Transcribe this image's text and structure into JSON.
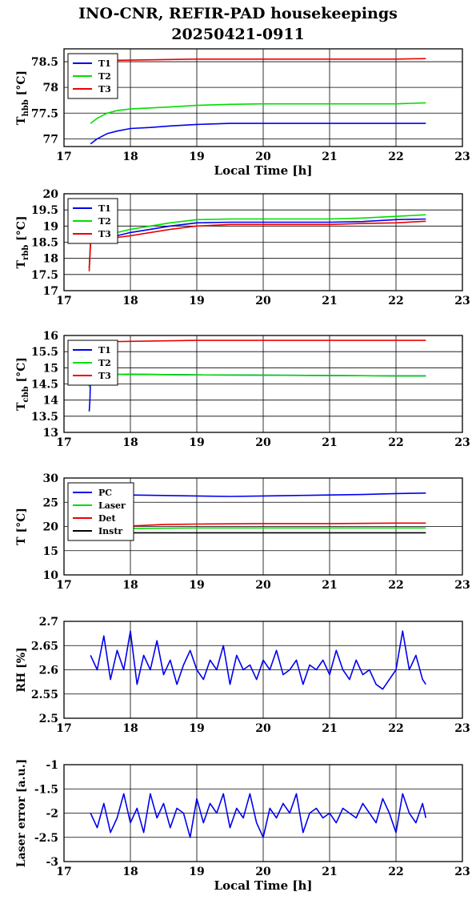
{
  "title_line1": "INO-CNR, REFIR-PAD housekeepings",
  "title_line2": "20250421-0911",
  "colors": {
    "blue": "#0000ee",
    "green": "#00dd00",
    "red": "#ee0000",
    "black": "#000000"
  },
  "chart_data": [
    {
      "type": "line",
      "ylabel_main": "T",
      "ylabel_sub": "hbb",
      "ylabel_unit": "[°C]",
      "xlabel": "Local Time [h]",
      "xlim": [
        17,
        23
      ],
      "ylim": [
        76.85,
        78.75
      ],
      "xticks": [
        17,
        18,
        19,
        20,
        21,
        22,
        23
      ],
      "yticks": [
        77,
        77.5,
        78,
        78.5
      ],
      "ytick_labels": [
        "77",
        "77.5",
        "78",
        "78.5"
      ],
      "grid": true,
      "legend": "top-left",
      "series": [
        {
          "name": "T1",
          "color": "#0000ee",
          "x": [
            17.4,
            17.5,
            17.65,
            17.8,
            18.0,
            18.3,
            18.6,
            19.0,
            19.5,
            20.0,
            20.5,
            21.0,
            21.5,
            22.0,
            22.45
          ],
          "y": [
            76.9,
            77.0,
            77.1,
            77.15,
            77.2,
            77.22,
            77.25,
            77.28,
            77.3,
            77.3,
            77.3,
            77.3,
            77.3,
            77.3,
            77.3
          ]
        },
        {
          "name": "T2",
          "color": "#00dd00",
          "x": [
            17.4,
            17.5,
            17.65,
            17.8,
            18.0,
            18.3,
            18.6,
            19.0,
            19.5,
            20.0,
            20.5,
            21.0,
            21.5,
            22.0,
            22.45
          ],
          "y": [
            77.3,
            77.4,
            77.5,
            77.55,
            77.58,
            77.6,
            77.62,
            77.65,
            77.67,
            77.68,
            77.68,
            77.68,
            77.68,
            77.68,
            77.7
          ]
        },
        {
          "name": "T3",
          "color": "#ee0000",
          "x": [
            17.4,
            18.0,
            19.0,
            20.0,
            21.0,
            22.0,
            22.45
          ],
          "y": [
            78.52,
            78.53,
            78.55,
            78.55,
            78.55,
            78.55,
            78.56
          ]
        }
      ]
    },
    {
      "type": "line",
      "ylabel_main": "T",
      "ylabel_sub": "rbb",
      "ylabel_unit": "[°C]",
      "xlabel": "",
      "xlim": [
        17,
        23
      ],
      "ylim": [
        17,
        20
      ],
      "xticks": [
        17,
        18,
        19,
        20,
        21,
        22,
        23
      ],
      "yticks": [
        17,
        17.5,
        18,
        18.5,
        19,
        19.5,
        20
      ],
      "ytick_labels": [
        "17",
        "17.5",
        "18",
        "18.5",
        "19",
        "19.5",
        "20"
      ],
      "grid": true,
      "legend": "top-left",
      "series": [
        {
          "name": "T1",
          "color": "#0000ee",
          "x": [
            17.38,
            17.4,
            17.45,
            17.6,
            17.8,
            18.0,
            18.3,
            18.6,
            19.0,
            19.5,
            20.0,
            20.5,
            21.0,
            21.5,
            22.0,
            22.45
          ],
          "y": [
            17.7,
            18.5,
            18.62,
            18.65,
            18.7,
            18.8,
            18.9,
            19.0,
            19.1,
            19.12,
            19.12,
            19.12,
            19.12,
            19.14,
            19.2,
            19.22
          ]
        },
        {
          "name": "T2",
          "color": "#00dd00",
          "x": [
            17.38,
            17.4,
            17.45,
            17.6,
            17.8,
            18.0,
            18.3,
            18.6,
            19.0,
            19.5,
            20.0,
            20.5,
            21.0,
            21.5,
            22.0,
            22.45
          ],
          "y": [
            17.7,
            18.55,
            18.7,
            18.75,
            18.8,
            18.9,
            19.0,
            19.1,
            19.2,
            19.22,
            19.22,
            19.22,
            19.22,
            19.25,
            19.3,
            19.35
          ]
        },
        {
          "name": "T3",
          "color": "#ee0000",
          "x": [
            17.38,
            17.4,
            17.45,
            17.6,
            17.8,
            18.0,
            18.3,
            18.6,
            19.0,
            19.5,
            20.0,
            20.5,
            21.0,
            21.5,
            22.0,
            22.45
          ],
          "y": [
            17.6,
            18.45,
            18.55,
            18.6,
            18.65,
            18.7,
            18.8,
            18.9,
            19.0,
            19.05,
            19.05,
            19.05,
            19.05,
            19.08,
            19.1,
            19.15
          ]
        }
      ]
    },
    {
      "type": "line",
      "ylabel_main": "T",
      "ylabel_sub": "cbb",
      "ylabel_unit": "[°C]",
      "xlabel": "",
      "xlim": [
        17,
        23
      ],
      "ylim": [
        13,
        16
      ],
      "xticks": [
        17,
        18,
        19,
        20,
        21,
        22,
        23
      ],
      "yticks": [
        13,
        13.5,
        14,
        14.5,
        15,
        15.5,
        16
      ],
      "ytick_labels": [
        "13",
        "13.5",
        "14",
        "14.5",
        "15",
        "15.5",
        "16"
      ],
      "grid": true,
      "legend": "top-left",
      "series": [
        {
          "name": "T1",
          "color": "#0000ee",
          "x": [
            17.38,
            17.39,
            17.4,
            17.45,
            18.0,
            19.0,
            20.0,
            21.0,
            22.0,
            22.45
          ],
          "y": [
            13.65,
            14.0,
            14.7,
            14.78,
            14.8,
            14.78,
            14.77,
            14.76,
            14.75,
            14.75
          ]
        },
        {
          "name": "T2",
          "color": "#00dd00",
          "x": [
            17.38,
            17.39,
            17.4,
            17.45,
            18.0,
            19.0,
            20.0,
            21.0,
            22.0,
            22.45
          ],
          "y": [
            14.4,
            14.6,
            14.75,
            14.78,
            14.8,
            14.78,
            14.77,
            14.76,
            14.75,
            14.75
          ]
        },
        {
          "name": "T3",
          "color": "#ee0000",
          "x": [
            17.4,
            18.0,
            19.0,
            20.0,
            21.0,
            22.0,
            22.45
          ],
          "y": [
            15.8,
            15.82,
            15.85,
            15.85,
            15.85,
            15.85,
            15.85
          ]
        }
      ]
    },
    {
      "type": "line",
      "ylabel_main": "T [°C]",
      "ylabel_sub": "",
      "ylabel_unit": "",
      "xlabel": "",
      "xlim": [
        17,
        23
      ],
      "ylim": [
        10,
        30
      ],
      "xticks": [
        17,
        18,
        19,
        20,
        21,
        22,
        23
      ],
      "yticks": [
        10,
        15,
        20,
        25,
        30
      ],
      "ytick_labels": [
        "10",
        "15",
        "20",
        "25",
        "30"
      ],
      "grid": true,
      "legend": "top-left",
      "series": [
        {
          "name": "PC",
          "color": "#0000ee",
          "x": [
            18.0,
            18.5,
            19.0,
            19.5,
            20.0,
            20.5,
            21.0,
            21.5,
            22.0,
            22.45
          ],
          "y": [
            26.5,
            26.4,
            26.3,
            26.2,
            26.3,
            26.4,
            26.5,
            26.6,
            26.8,
            26.9
          ]
        },
        {
          "name": "Laser",
          "color": "#00dd00",
          "x": [
            18.0,
            19.0,
            20.0,
            21.0,
            22.0,
            22.45
          ],
          "y": [
            19.6,
            19.7,
            19.7,
            19.7,
            19.7,
            19.7
          ]
        },
        {
          "name": "Det",
          "color": "#ee0000",
          "x": [
            18.0,
            18.5,
            19.0,
            20.0,
            21.0,
            22.0,
            22.45
          ],
          "y": [
            20.1,
            20.4,
            20.5,
            20.6,
            20.6,
            20.7,
            20.7
          ]
        },
        {
          "name": "Instr",
          "color": "#000000",
          "x": [
            18.0,
            19.0,
            20.0,
            21.0,
            22.0,
            22.45
          ],
          "y": [
            18.7,
            18.7,
            18.7,
            18.7,
            18.7,
            18.7
          ]
        }
      ]
    },
    {
      "type": "line",
      "ylabel_main": "RH [%]",
      "ylabel_sub": "",
      "ylabel_unit": "",
      "xlabel": "",
      "xlim": [
        17,
        23
      ],
      "ylim": [
        2.5,
        2.7
      ],
      "xticks": [
        17,
        18,
        19,
        20,
        21,
        22,
        23
      ],
      "yticks": [
        2.5,
        2.55,
        2.6,
        2.65,
        2.7
      ],
      "ytick_labels": [
        "2.5",
        "2.55",
        "2.6",
        "2.65",
        "2.7"
      ],
      "grid": true,
      "legend": "none",
      "series": [
        {
          "name": "",
          "color": "#0000ee",
          "x": [
            17.4,
            17.5,
            17.6,
            17.7,
            17.8,
            17.9,
            18.0,
            18.1,
            18.2,
            18.3,
            18.4,
            18.5,
            18.6,
            18.7,
            18.8,
            18.9,
            19.0,
            19.1,
            19.2,
            19.3,
            19.4,
            19.5,
            19.6,
            19.7,
            19.8,
            19.9,
            20.0,
            20.1,
            20.2,
            20.3,
            20.4,
            20.5,
            20.6,
            20.7,
            20.8,
            20.9,
            21.0,
            21.1,
            21.2,
            21.3,
            21.4,
            21.5,
            21.6,
            21.7,
            21.8,
            21.9,
            22.0,
            22.1,
            22.2,
            22.3,
            22.4,
            22.45
          ],
          "y": [
            2.63,
            2.6,
            2.67,
            2.58,
            2.64,
            2.6,
            2.68,
            2.57,
            2.63,
            2.6,
            2.66,
            2.59,
            2.62,
            2.57,
            2.61,
            2.64,
            2.6,
            2.58,
            2.62,
            2.6,
            2.65,
            2.57,
            2.63,
            2.6,
            2.61,
            2.58,
            2.62,
            2.6,
            2.64,
            2.59,
            2.6,
            2.62,
            2.57,
            2.61,
            2.6,
            2.62,
            2.59,
            2.64,
            2.6,
            2.58,
            2.62,
            2.59,
            2.6,
            2.57,
            2.56,
            2.58,
            2.6,
            2.68,
            2.6,
            2.63,
            2.58,
            2.57
          ]
        }
      ]
    },
    {
      "type": "line",
      "ylabel_main": "Laser error [a.u.]",
      "ylabel_sub": "",
      "ylabel_unit": "",
      "xlabel": "Local Time [h]",
      "xlim": [
        17,
        23
      ],
      "ylim": [
        -3,
        -1
      ],
      "xticks": [
        17,
        18,
        19,
        20,
        21,
        22,
        23
      ],
      "yticks": [
        -3,
        -2.5,
        -2,
        -1.5,
        -1
      ],
      "ytick_labels": [
        "-3",
        "-2.5",
        "-2",
        "-1.5",
        "-1"
      ],
      "grid": true,
      "legend": "none",
      "series": [
        {
          "name": "",
          "color": "#0000ee",
          "x": [
            17.4,
            17.5,
            17.6,
            17.7,
            17.8,
            17.9,
            18.0,
            18.1,
            18.2,
            18.3,
            18.4,
            18.5,
            18.6,
            18.7,
            18.8,
            18.9,
            19.0,
            19.1,
            19.2,
            19.3,
            19.4,
            19.5,
            19.6,
            19.7,
            19.8,
            19.9,
            20.0,
            20.1,
            20.2,
            20.3,
            20.4,
            20.5,
            20.6,
            20.7,
            20.8,
            20.9,
            21.0,
            21.1,
            21.2,
            21.3,
            21.4,
            21.5,
            21.6,
            21.7,
            21.8,
            21.9,
            22.0,
            22.1,
            22.2,
            22.3,
            22.4,
            22.45
          ],
          "y": [
            -2.0,
            -2.3,
            -1.8,
            -2.4,
            -2.1,
            -1.6,
            -2.2,
            -1.9,
            -2.4,
            -1.6,
            -2.1,
            -1.8,
            -2.3,
            -1.9,
            -2.0,
            -2.5,
            -1.7,
            -2.2,
            -1.8,
            -2.0,
            -1.6,
            -2.3,
            -1.9,
            -2.1,
            -1.6,
            -2.2,
            -2.5,
            -1.9,
            -2.1,
            -1.8,
            -2.0,
            -1.6,
            -2.4,
            -2.0,
            -1.9,
            -2.1,
            -2.0,
            -2.2,
            -1.9,
            -2.0,
            -2.1,
            -1.8,
            -2.0,
            -2.2,
            -1.7,
            -2.0,
            -2.4,
            -1.6,
            -2.0,
            -2.2,
            -1.8,
            -2.1
          ]
        }
      ]
    }
  ]
}
